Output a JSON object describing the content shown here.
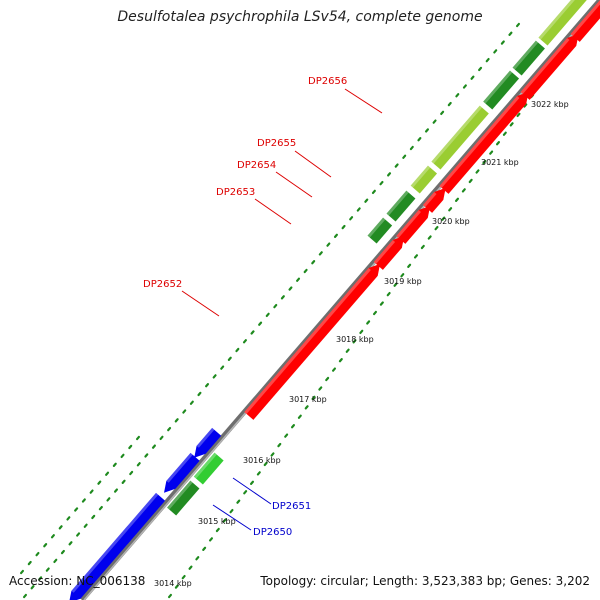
{
  "title": "Desulfotalea psychrophila LSv54, complete genome",
  "footer": {
    "accession": "Accession: NC_006138",
    "summary": "Topology: circular; Length: 3,523,383 bp; Genes: 3,202"
  },
  "colors": {
    "backbone": "#8c8c8c",
    "forward_cds": "#ff0000",
    "reverse_cds": "#0000ee",
    "dark_green": "#228b22",
    "light_green": "#9acd32",
    "medium_green": "#32cd32",
    "tick_dots": "#1e8a1e",
    "label_red": "#dd0000",
    "label_blue": "#0000cc"
  },
  "scale_labels": [
    "3014 kbp",
    "3015 kbp",
    "3016 kbp",
    "3017 kbp",
    "3018 kbp",
    "3019 kbp",
    "3020 kbp",
    "3021 kbp",
    "3022 kbp"
  ],
  "gene_labels": [
    {
      "text": "DP2656",
      "color": "red"
    },
    {
      "text": "DP2655",
      "color": "red"
    },
    {
      "text": "DP2654",
      "color": "red"
    },
    {
      "text": "DP2653",
      "color": "red"
    },
    {
      "text": "DP2652",
      "color": "red"
    },
    {
      "text": "DP2651",
      "color": "blue"
    },
    {
      "text": "DP2650",
      "color": "blue"
    }
  ]
}
